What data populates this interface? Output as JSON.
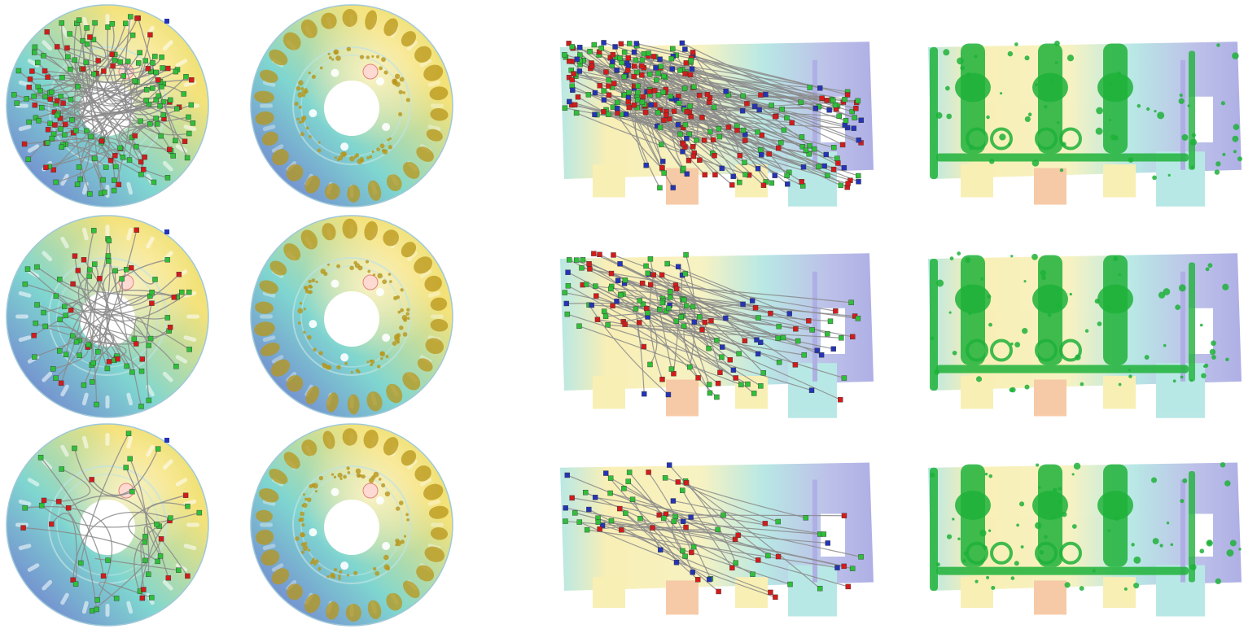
{
  "figure": {
    "rows": 3,
    "columns": 4,
    "panels": [
      {
        "id": "d11",
        "kind": "disc",
        "mode": "trajectories",
        "density": "high"
      },
      {
        "id": "d12",
        "kind": "disc",
        "mode": "surface"
      },
      {
        "id": "d21",
        "kind": "disc",
        "mode": "trajectories",
        "density": "medium"
      },
      {
        "id": "d22",
        "kind": "disc",
        "mode": "surface"
      },
      {
        "id": "d31",
        "kind": "disc",
        "mode": "trajectories",
        "density": "low"
      },
      {
        "id": "d32",
        "kind": "disc",
        "mode": "surface"
      },
      {
        "id": "b11",
        "kind": "block",
        "mode": "trajectories",
        "density": "high"
      },
      {
        "id": "b12",
        "kind": "block",
        "mode": "surface"
      },
      {
        "id": "b21",
        "kind": "block",
        "mode": "trajectories",
        "density": "medium"
      },
      {
        "id": "b22",
        "kind": "block",
        "mode": "surface"
      },
      {
        "id": "b31",
        "kind": "block",
        "mode": "trajectories",
        "density": "low"
      },
      {
        "id": "b32",
        "kind": "block",
        "mode": "surface"
      }
    ]
  },
  "colors": {
    "marker_green": "#2fbf3a",
    "marker_red": "#d21c1c",
    "marker_blue": "#2434b4",
    "path_gray": "#8a8a8a",
    "surface_green": "#1fb23a",
    "surface_gold": "#b8961a",
    "field_low": "#6e6fd0",
    "field_mid": "#7fd6d0",
    "field_high": "#f4e27a",
    "field_peak": "#f0a060"
  }
}
